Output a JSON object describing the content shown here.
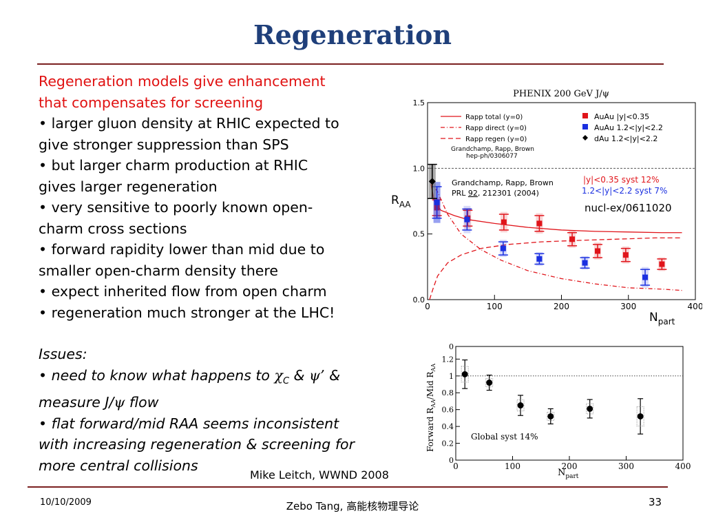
{
  "slide": {
    "title": "Regeneration",
    "credit": "Mike Leitch, WWND 2008",
    "footer": {
      "date": "10/10/2009",
      "center": "Zebo Tang, 高能核物理导论",
      "page": "33"
    }
  },
  "text": {
    "l1": "Regeneration models give enhancement",
    "l2": "that compensates for screening",
    "l3": "• larger gluon density at RHIC expected to",
    "l4": "give stronger suppression than SPS",
    "l5": "• but larger charm production at RHIC",
    "l6": "gives larger regeneration",
    "l7": "• very sensitive to poorly known open-",
    "l8": "charm cross sections",
    "l9": "• forward rapidity lower than mid due to",
    "l10": "smaller open-charm density there",
    "l11": "• expect inherited flow from open charm",
    "l12": "• regeneration much stronger at the LHC!",
    "issues": "Issues:",
    "i1a": "• need to know what happens to ",
    "chi": "χ",
    "chi_sub": "C",
    "i1b": " & ",
    "psi_prime": "ψ’",
    "i1c": " &",
    "i2a": "measure J/",
    "psi": "ψ",
    "i2b": " flow",
    "i3": "• flat forward/mid RAA seems inconsistent",
    "i4": "with increasing regeneration & screening for",
    "i5": "more central collisions"
  },
  "chart_data": [
    {
      "type": "scatter",
      "title": "PHENIX 200 GeV J/ψ",
      "xlabel": "N_part",
      "ylabel": "R_AA",
      "xlim": [
        0,
        400
      ],
      "ylim": [
        0,
        1.5
      ],
      "xticks": [
        "0",
        "100",
        "200",
        "300",
        "400"
      ],
      "yticks": [
        "0.0",
        "0.5",
        "1.0",
        "1.5"
      ],
      "reference_line": 1.0,
      "legend_lines": [
        "Rapp total (y=0)",
        "Rapp direct (y=0)",
        "Rapp regen (y=0)"
      ],
      "legend_ref": "Grandchamp, Rapp, Brown",
      "legend_ref2": "hep-ph/0306077",
      "legend_markers": [
        "AuAu |y|<0.35",
        "AuAu 1.2<|y|<2.2",
        "dAu 1.2<|y|<2.2"
      ],
      "annotations": {
        "ref_a": "Grandchamp, Rapp, Brown",
        "ref_b1": "PRL ",
        "ref_b2": "92",
        "ref_b3": ", 212301 (2004)",
        "syst_mid": "|y|<0.35 syst 12%",
        "syst_fwd": "1.2<|y|<2.2 syst 7%",
        "nucl_ex": "nucl-ex/0611020"
      },
      "colors": {
        "mid": "#e0141a",
        "fwd": "#1a2fe0",
        "dau": "#000000",
        "theory": "#e0141a"
      },
      "series": [
        {
          "name": "AuAu |y|<0.35",
          "x": [
            14,
            60,
            114,
            167,
            216,
            254,
            296,
            350
          ],
          "y": [
            0.7,
            0.62,
            0.59,
            0.58,
            0.46,
            0.37,
            0.34,
            0.27
          ],
          "err": [
            0.06,
            0.06,
            0.06,
            0.06,
            0.05,
            0.05,
            0.05,
            0.04
          ]
        },
        {
          "name": "AuAu 1.2<|y|<2.2",
          "x": [
            14,
            59,
            113,
            167,
            235,
            325
          ],
          "y": [
            0.74,
            0.61,
            0.39,
            0.31,
            0.28,
            0.17
          ],
          "err": [
            0.12,
            0.08,
            0.05,
            0.04,
            0.04,
            0.06
          ]
        },
        {
          "name": "dAu 1.2<|y|<2.2",
          "x": [
            7
          ],
          "y": [
            0.9
          ],
          "err": [
            0.13
          ]
        }
      ],
      "theory_curves": {
        "total": {
          "x": [
            5,
            10,
            20,
            40,
            60,
            100,
            150,
            200,
            250,
            300,
            350,
            380
          ],
          "y": [
            0.88,
            0.75,
            0.68,
            0.64,
            0.61,
            0.58,
            0.55,
            0.53,
            0.52,
            0.515,
            0.51,
            0.51
          ]
        },
        "direct": {
          "x": [
            5,
            15,
            30,
            50,
            80,
            110,
            150,
            200,
            250,
            300,
            350,
            380
          ],
          "y": [
            0.9,
            0.82,
            0.65,
            0.5,
            0.38,
            0.3,
            0.22,
            0.16,
            0.12,
            0.09,
            0.08,
            0.07
          ]
        },
        "regen": {
          "x": [
            3,
            8,
            15,
            30,
            50,
            80,
            120,
            170,
            220,
            280,
            340,
            380
          ],
          "y": [
            0.0,
            0.08,
            0.18,
            0.28,
            0.34,
            0.39,
            0.42,
            0.44,
            0.45,
            0.46,
            0.47,
            0.47
          ]
        }
      }
    },
    {
      "type": "scatter",
      "title": "",
      "xlabel": "N_part",
      "ylabel": "Forward R_AA/Mid R_AA",
      "xlim": [
        0,
        400
      ],
      "ylim": [
        0,
        1.35
      ],
      "xticks": [
        "0",
        "100",
        "200",
        "300",
        "400"
      ],
      "yticks": [
        "0",
        "0.2",
        "0.4",
        "0.6",
        "0.8",
        "1",
        "1.2"
      ],
      "ytick_partial": "0",
      "reference_line": 1.0,
      "annotation": "Global syst 14%",
      "series": [
        {
          "name": "",
          "x": [
            16,
            59,
            114,
            167,
            236,
            325
          ],
          "y": [
            1.02,
            0.92,
            0.65,
            0.52,
            0.61,
            0.52
          ],
          "err": [
            0.17,
            0.09,
            0.12,
            0.09,
            0.11,
            0.21
          ]
        }
      ]
    }
  ]
}
